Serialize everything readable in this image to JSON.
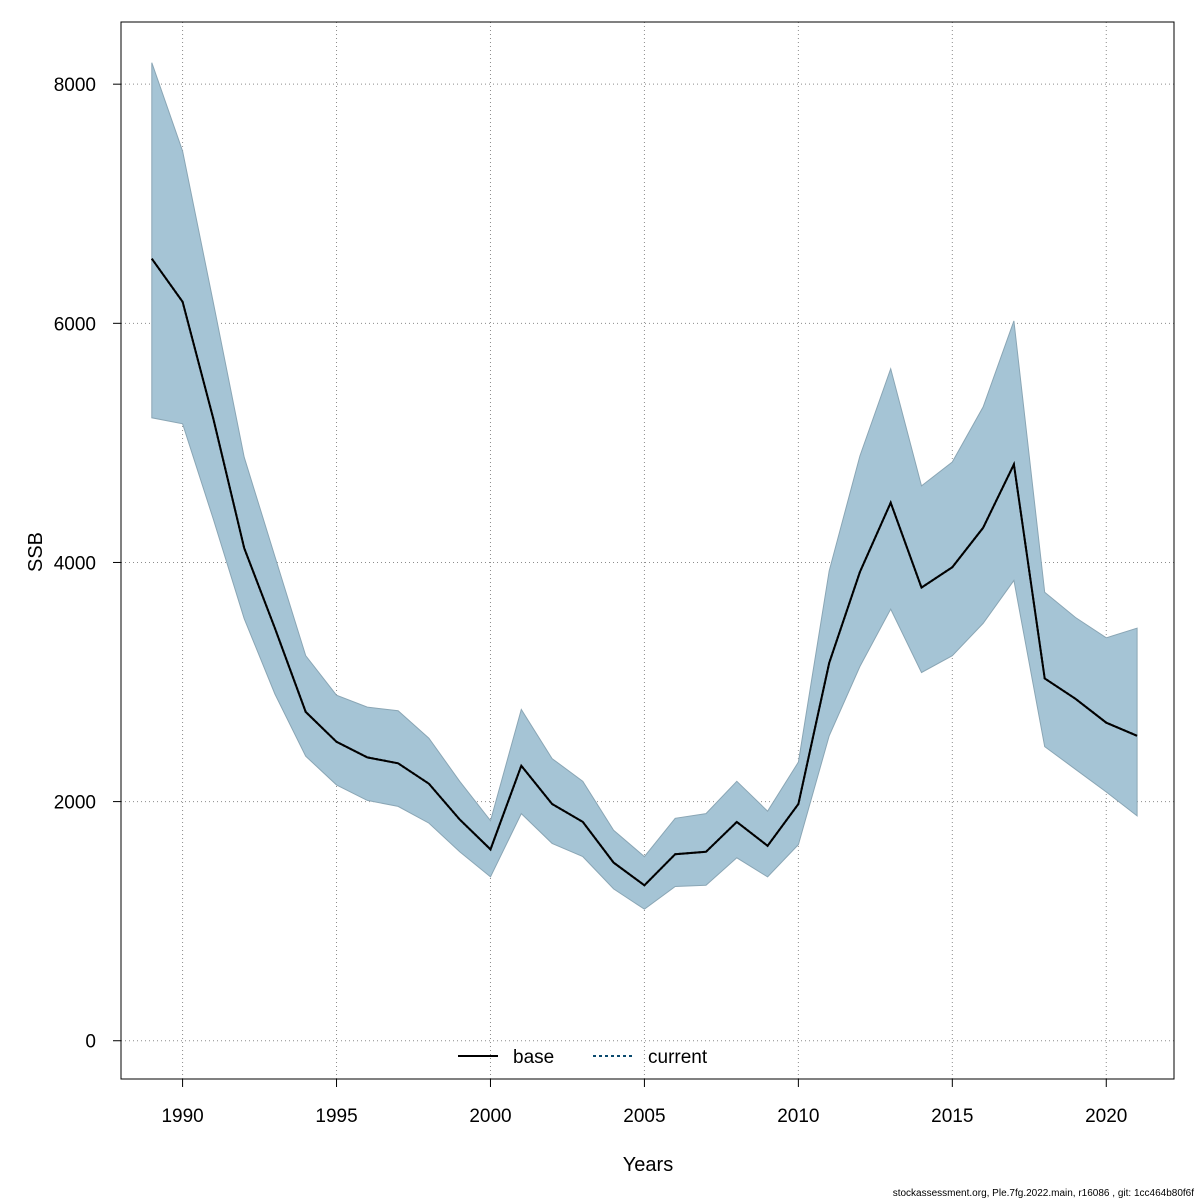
{
  "chart_data": {
    "type": "area",
    "xlabel": "Years",
    "ylabel": "SSB",
    "xlim": [
      1988.0,
      2022.2
    ],
    "ylim": [
      -320,
      8520
    ],
    "x_ticks": [
      1990,
      1995,
      2000,
      2005,
      2010,
      2015,
      2020
    ],
    "y_ticks": [
      0,
      2000,
      4000,
      6000,
      8000
    ],
    "grid": true,
    "legend_position": "bottom-center",
    "colors": {
      "band_fill": "#a5c4d5",
      "band_stroke": "#8aa6b5",
      "base_line": "#000000",
      "current_line": "#0a4a6e",
      "grid": "#8c8c8c",
      "axis": "#000000"
    },
    "x": [
      1989,
      1990,
      1991,
      1992,
      1993,
      1994,
      1995,
      1996,
      1997,
      1998,
      1999,
      2000,
      2001,
      2002,
      2003,
      2004,
      2005,
      2006,
      2007,
      2008,
      2009,
      2010,
      2011,
      2012,
      2013,
      2014,
      2015,
      2016,
      2017,
      2018,
      2019,
      2020,
      2021
    ],
    "series": [
      {
        "name": "base",
        "style": "solid",
        "values": [
          6540,
          6180,
          5200,
          4120,
          3450,
          2750,
          2500,
          2370,
          2320,
          2150,
          1850,
          1600,
          2300,
          1980,
          1830,
          1490,
          1300,
          1560,
          1580,
          1830,
          1630,
          1980,
          3160,
          3920,
          4500,
          3790,
          3960,
          4290,
          4820,
          3030,
          2860,
          2660,
          2550
        ]
      },
      {
        "name": "current",
        "style": "dotted",
        "values": [
          6540,
          6180,
          5200,
          4120,
          3450,
          2750,
          2500,
          2370,
          2320,
          2150,
          1850,
          1600,
          2300,
          1980,
          1830,
          1490,
          1300,
          1560,
          1580,
          1830,
          1630,
          1980,
          3160,
          3920,
          4500,
          3790,
          3960,
          4290,
          4820,
          3030,
          2860,
          2660,
          2550
        ]
      }
    ],
    "band": {
      "upper": [
        8180,
        7440,
        6170,
        4880,
        4050,
        3220,
        2890,
        2790,
        2760,
        2530,
        2170,
        1840,
        2770,
        2360,
        2170,
        1760,
        1540,
        1860,
        1900,
        2170,
        1920,
        2330,
        3930,
        4890,
        5620,
        4640,
        4840,
        5300,
        6020,
        3750,
        3540,
        3370,
        3450
      ],
      "lower": [
        5210,
        5160,
        4360,
        3530,
        2900,
        2380,
        2140,
        2010,
        1960,
        1820,
        1580,
        1370,
        1900,
        1650,
        1540,
        1270,
        1100,
        1290,
        1300,
        1530,
        1370,
        1640,
        2550,
        3130,
        3610,
        3080,
        3220,
        3490,
        3850,
        2460,
        2270,
        2080,
        1880
      ]
    }
  },
  "footer": {
    "text": "stockassessment.org, Ple.7fg.2022.main, r16086 , git: 1cc464b80f6f"
  }
}
